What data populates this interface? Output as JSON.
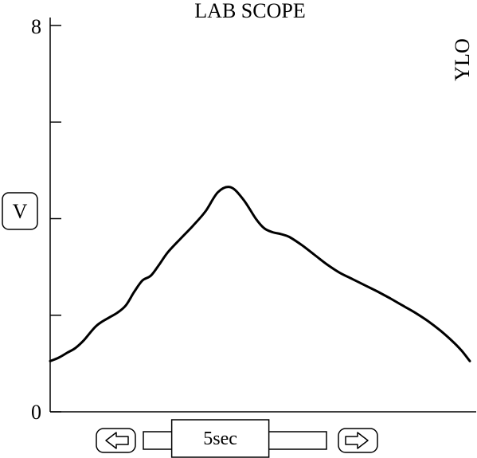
{
  "title": "LAB SCOPE",
  "channel_label": "YLO",
  "unit_button": {
    "label": "V"
  },
  "time_control": {
    "left_arrow_icon": "left-arrow-icon",
    "right_arrow_icon": "right-arrow-icon",
    "timebase_label": "5sec",
    "scroll_position": 0.33
  },
  "chart_data": {
    "type": "line",
    "title": "LAB SCOPE",
    "xlabel": "",
    "ylabel": "V",
    "ylim": [
      0,
      8
    ],
    "xlim": [
      0,
      5
    ],
    "y_tick_labels": [
      {
        "value": 8,
        "label": "8"
      },
      {
        "value": 0,
        "label": "0"
      }
    ],
    "y_ticks": [
      0,
      2,
      4,
      6,
      8
    ],
    "grid": false,
    "series": [
      {
        "name": "YLO",
        "color": "#000000",
        "x": [
          0.0,
          0.1,
          0.2,
          0.3,
          0.4,
          0.55,
          0.7,
          0.8,
          0.9,
          1.0,
          1.1,
          1.2,
          1.3,
          1.4,
          1.55,
          1.7,
          1.85,
          2.0,
          2.15,
          2.3,
          2.45,
          2.55,
          2.65,
          2.75,
          2.85,
          3.0,
          3.15,
          3.3,
          3.45,
          3.6,
          3.75,
          3.9,
          4.05,
          4.2,
          4.35,
          4.5,
          4.65,
          4.8,
          4.9,
          5.0
        ],
        "values": [
          1.05,
          1.12,
          1.22,
          1.32,
          1.48,
          1.78,
          1.95,
          2.05,
          2.2,
          2.48,
          2.72,
          2.82,
          3.05,
          3.3,
          3.58,
          3.85,
          4.15,
          4.55,
          4.65,
          4.4,
          4.0,
          3.8,
          3.72,
          3.68,
          3.62,
          3.45,
          3.25,
          3.05,
          2.88,
          2.75,
          2.62,
          2.49,
          2.35,
          2.2,
          2.05,
          1.88,
          1.68,
          1.45,
          1.27,
          1.05
        ]
      }
    ]
  }
}
